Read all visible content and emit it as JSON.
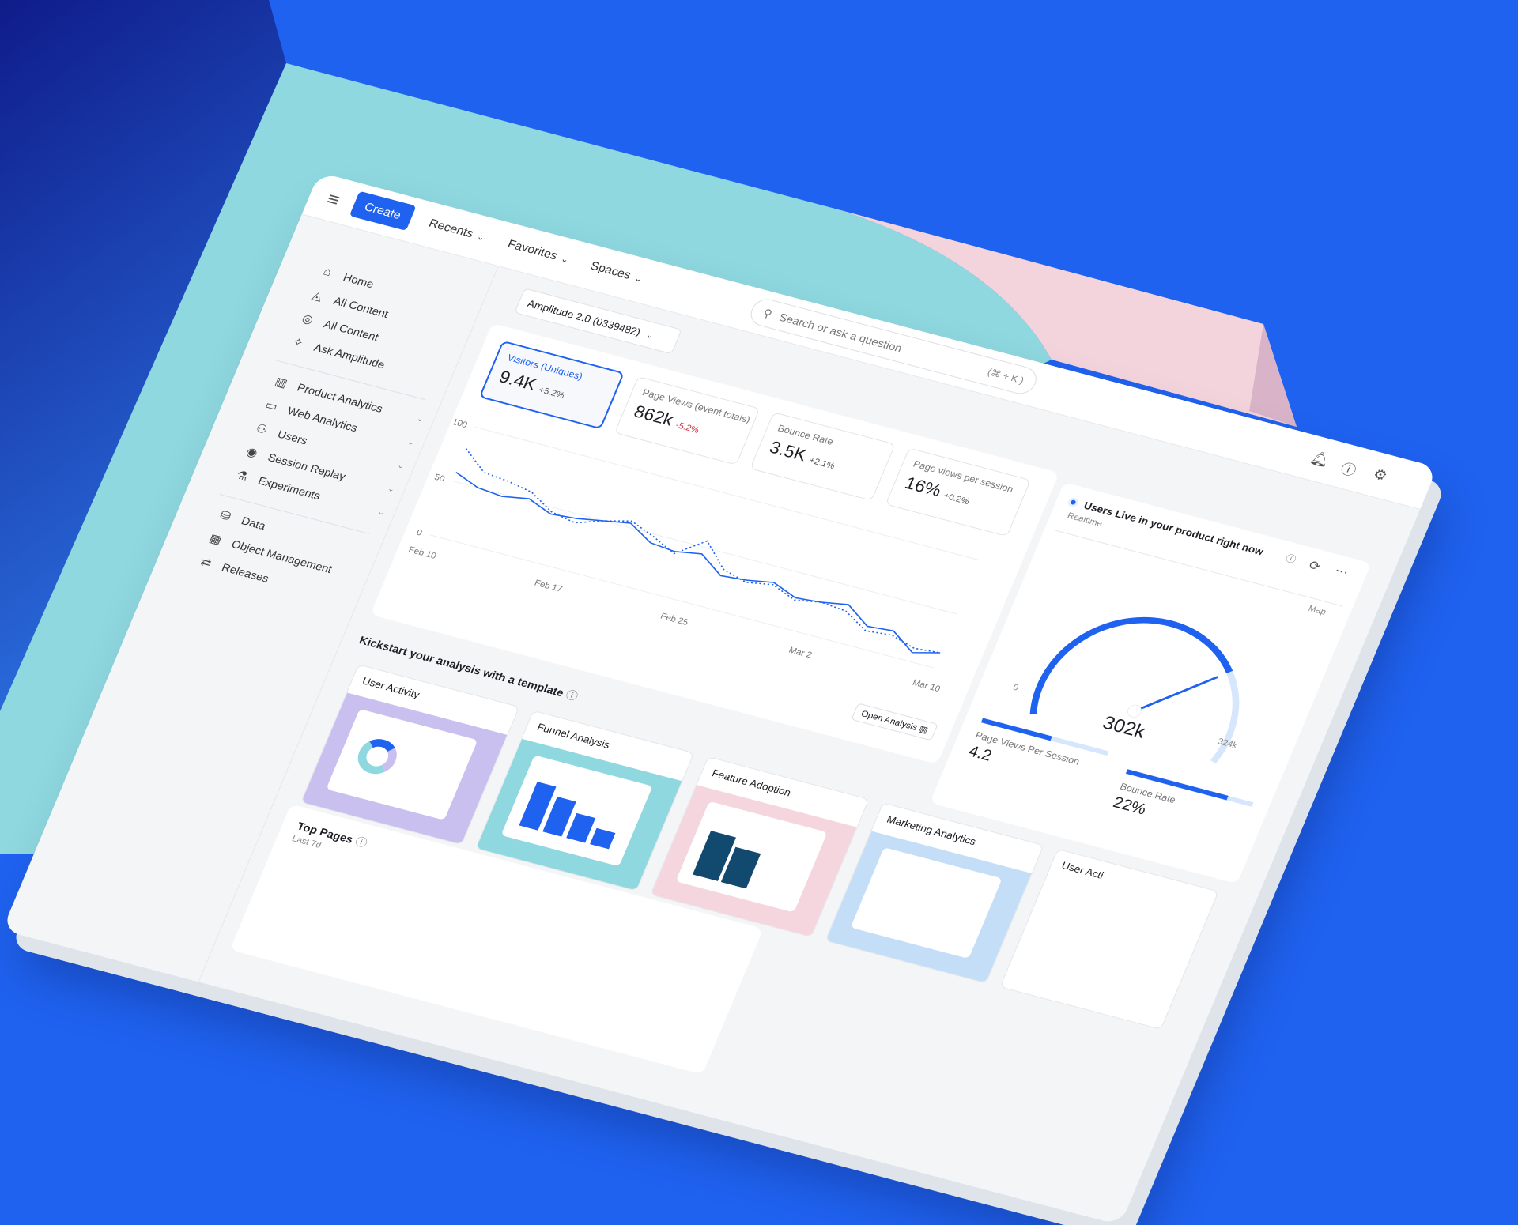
{
  "colors": {
    "brand": "#1f62f0",
    "teal": "#8fd8e0",
    "pink": "#f5d6de",
    "navy": "#0f1c8a",
    "negative": "#d0344a"
  },
  "topbar": {
    "menu_icon": "hamburger-icon",
    "create_label": "Create",
    "nav": [
      {
        "label": "Recents"
      },
      {
        "label": "Favorites"
      },
      {
        "label": "Spaces"
      }
    ],
    "search_placeholder": "Search or ask a question",
    "search_shortcut": "(⌘ + K )",
    "icons": [
      "bell-icon",
      "help-icon",
      "gear-icon"
    ]
  },
  "sidebar": {
    "items": [
      {
        "label": "Home",
        "icon": "⌂"
      },
      {
        "label": "All Content",
        "icon": "◬"
      },
      {
        "label": "All Content",
        "icon": "◎"
      },
      {
        "label": "Ask Amplitude",
        "icon": "✧"
      },
      {
        "label": "Product Analytics",
        "icon": "▥",
        "chevron": true
      },
      {
        "label": "Web Analytics",
        "icon": "▭",
        "chevron": true
      },
      {
        "label": "Users",
        "icon": "⚇",
        "chevron": true
      },
      {
        "label": "Session Replay",
        "icon": "◉",
        "chevron": true
      },
      {
        "label": "Experiments",
        "icon": "⚗",
        "chevron": true
      },
      {
        "label": "Data",
        "icon": "⛁"
      },
      {
        "label": "Object Management",
        "icon": "▦"
      },
      {
        "label": "Releases",
        "icon": "⇄"
      }
    ]
  },
  "project_selector": "Amplitude 2.0 (0339482)",
  "kpis": [
    {
      "label": "Visitors (Uniques)",
      "value": "9.4K",
      "delta": "+5.2%",
      "selected": true
    },
    {
      "label": "Page Views (event totals)",
      "value": "862k",
      "delta": "-5.2%",
      "negative": true
    },
    {
      "label": "Bounce Rate",
      "value": "3.5K",
      "delta": "+2.1%"
    },
    {
      "label": "Page views per session",
      "value": "16%",
      "delta": "+0.2%"
    }
  ],
  "chart_data": {
    "type": "line",
    "ylim": [
      0,
      100
    ],
    "yticks": [
      "100",
      "50",
      "0"
    ],
    "xticks": [
      "Feb 10",
      "Feb 17",
      "Feb 25",
      "Mar 2",
      "Mar 10"
    ],
    "grid": true,
    "series": [
      {
        "style": "solid",
        "values": [
          58,
          50,
          48,
          52,
          44,
          46,
          50,
          54,
          42,
          40,
          44,
          30,
          32,
          36,
          28,
          30,
          34,
          20,
          22,
          8,
          14
        ]
      },
      {
        "style": "dotted",
        "values": [
          80,
          64,
          62,
          58,
          46,
          42,
          50,
          56,
          48,
          38,
          56,
          36,
          30,
          34,
          26,
          30,
          28,
          16,
          18,
          12,
          14
        ]
      }
    ]
  },
  "open_analysis": "Open Analysis",
  "live": {
    "title": "Users Live in your product right now",
    "subtitle": "Realtime",
    "map": "Map",
    "gauge_min": "0",
    "gauge_max": "324k",
    "gauge_value": "302k",
    "gauge_fraction": 0.93,
    "metrics": [
      {
        "label": "Page Views Per Session",
        "value": "4.2",
        "fill": 0.55
      },
      {
        "label": "Bounce Rate",
        "value": "22%",
        "fill": 0.8
      }
    ]
  },
  "templates": {
    "title": "Kickstart your analysis with a template",
    "cards": [
      {
        "label": "User Activity",
        "color": "#c9c0f0"
      },
      {
        "label": "Funnel Analysis",
        "color": "#8fd8e0"
      },
      {
        "label": "Feature Adoption",
        "color": "#f5d6de"
      },
      {
        "label": "Marketing Analytics",
        "color": "#c5def8"
      },
      {
        "label": "User Acti",
        "color": "#ffffff"
      }
    ]
  },
  "top_pages": {
    "title": "Top Pages",
    "subtitle": "Last 7d"
  }
}
